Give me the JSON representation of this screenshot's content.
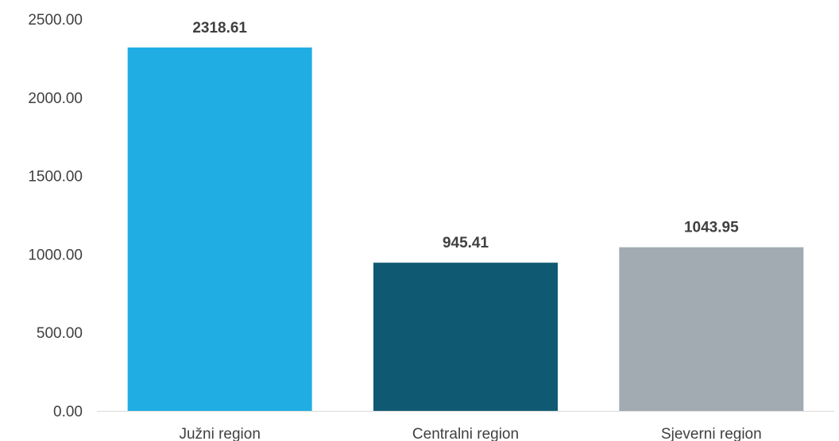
{
  "chart_data": {
    "type": "bar",
    "title": "",
    "xlabel": "",
    "ylabel": "",
    "categories": [
      "Južni region",
      "Centralni region",
      "Sjeverni region"
    ],
    "values": [
      2318.61,
      945.41,
      1043.95
    ],
    "value_labels": [
      "2318.61",
      "945.41",
      "1043.95"
    ],
    "colors": [
      "#1fade3",
      "#0f5a72",
      "#a2abb1"
    ],
    "ylim": [
      0,
      2500
    ],
    "yticks": [
      0,
      500,
      1000,
      1500,
      2000,
      2500
    ],
    "ytick_labels": [
      "0.00",
      "500.00",
      "1000.00",
      "1500.00",
      "2000.00",
      "2500.00"
    ],
    "grid": false,
    "legend": "none"
  }
}
